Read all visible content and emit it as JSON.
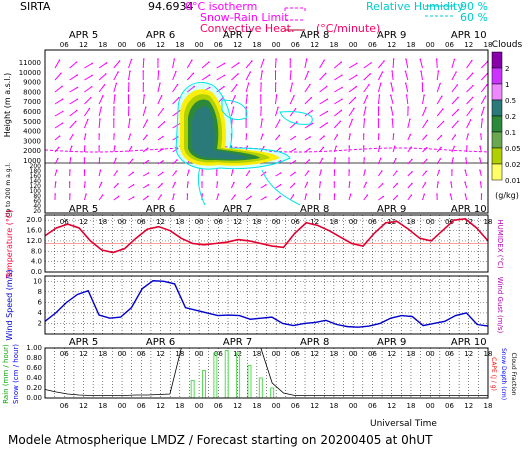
{
  "header": {
    "station": "SIRTA",
    "coords": "94.6934",
    "isotherm_label": "0°C isotherm",
    "snow_rain_label": "Snow-Rain Limit",
    "conv_heat_label": "Convective Heat.",
    "unit_label": "(°C/minute)",
    "rh_label": "Relative Humidity",
    "rh_90": "90 %",
    "rh_60": "60 %"
  },
  "footer": {
    "title": "Modele Atmospherique LMDZ / Forecast starting on 20200405 at 0hUT",
    "universal_time": "Universal Time"
  },
  "colors": {
    "magenta": "#ff00ff",
    "cyan": "#00e5e5",
    "red_line": "#e00030",
    "blue_line": "#0000cc",
    "green_bars": "#55dd55"
  },
  "chart_data": [
    {
      "type": "heatmap",
      "name": "Clouds",
      "ylabel": "Height (m a.s.l.)",
      "ylabel_low": "Up to 200 m a.g.l.",
      "yticks_upper": [
        "11000",
        "10000",
        "9000",
        "8000",
        "7000",
        "6000",
        "5000",
        "4000",
        "3000",
        "2000",
        "1000"
      ],
      "yticks_lower": [
        "200",
        "180",
        "160",
        "140",
        "120",
        "100",
        "80",
        "60",
        "40",
        "20"
      ],
      "day_labels": [
        "APR 5",
        "APR 6",
        "APR 7",
        "APR 8",
        "APR 9",
        "APR 10"
      ],
      "hour_ticks": [
        "06",
        "12",
        "18",
        "00",
        "06",
        "12",
        "18",
        "00",
        "06",
        "12",
        "18",
        "00",
        "06",
        "12",
        "18",
        "00",
        "06",
        "12",
        "18",
        "00",
        "06",
        "12",
        "18"
      ],
      "colorbar_title": "Clouds",
      "colorbar_ticks": [
        "2",
        "1",
        "0.5",
        "0.2",
        "0.1",
        "0.05",
        "0.02",
        "0.01"
      ],
      "colorbar_unit": "(g/kg)"
    },
    {
      "type": "line",
      "name": "Temperature",
      "ylabel": "Temperature (°C)",
      "ylabel_right": "HUMIDEX (°C)",
      "yticks": [
        "20.0",
        "16.0",
        "12.0",
        "8.0",
        "4.0",
        "0.0"
      ],
      "ylim": [
        0,
        22
      ],
      "series": [
        {
          "values": [
            14,
            17,
            18.5,
            17,
            12,
            8.5,
            7.5,
            9,
            13,
            16.5,
            17.5,
            16,
            13,
            11,
            10.5,
            11,
            11.5,
            12.5,
            12,
            11,
            10,
            9.5,
            15,
            19,
            18,
            16,
            13.5,
            11,
            10,
            15,
            19,
            19.5,
            16.5,
            13,
            12,
            16,
            20,
            20.5,
            17,
            12
          ]
        },
        {
          "values": [
            11,
            11,
            11,
            11,
            11,
            11,
            11,
            11,
            11,
            11,
            11,
            11,
            11,
            11,
            11,
            11,
            11,
            11,
            11,
            11,
            11,
            11,
            11,
            11,
            11,
            11,
            11,
            11,
            11,
            11,
            11,
            11,
            11,
            11,
            11,
            11,
            11,
            11,
            11,
            11
          ]
        }
      ]
    },
    {
      "type": "line",
      "name": "Wind Speed",
      "ylabel": "Wind Speed (m/s)",
      "ylabel_right": "Wind Gust (m/s)",
      "yticks": [
        "10",
        "8",
        "6",
        "4",
        "2"
      ],
      "ylim": [
        0,
        11
      ],
      "series": [
        {
          "values": [
            2.4,
            4,
            6,
            7.5,
            8.2,
            3.6,
            3,
            3.2,
            5,
            8.6,
            10.1,
            10,
            9.5,
            5,
            4.5,
            4,
            3.5,
            3.6,
            3.5,
            2.8,
            3,
            3.2,
            2,
            1.6,
            2,
            2.2,
            2.6,
            1.8,
            1.4,
            1.3,
            1.5,
            2,
            3,
            3.5,
            3.3,
            1.6,
            2,
            2.4,
            3.5,
            4,
            1.8,
            1.5
          ]
        }
      ]
    },
    {
      "type": "bar",
      "name": "Precipitation",
      "ylabel": "Rain (mm / hour)",
      "ylabel_2": "Snow (cm / hour)",
      "ylabel_right": "CAPE (J / g)",
      "ylabel_right_2": "Snow Depth (cm)",
      "ylabel_right_3": "Cloud Fraction",
      "yticks": [
        "1.00",
        "0.80",
        "0.60",
        "0.40",
        "0.20",
        "0.00"
      ],
      "ylim": [
        0,
        1
      ],
      "cloud_fraction": [
        0.17,
        0.12,
        0.08,
        0.06,
        0.05,
        0.05,
        0.05,
        0.05,
        0.06,
        0.06,
        0.07,
        0.08,
        1,
        1,
        1,
        1,
        1,
        1,
        1,
        1,
        0.3,
        0.1,
        0.05,
        0.05,
        0.05,
        0.05,
        0.05,
        0.05,
        0.05,
        0.05,
        0.05,
        0.05,
        0.05,
        0.05,
        0.05,
        0.05,
        0.05,
        0.05,
        0.05,
        0.05
      ],
      "rain": [
        0,
        0,
        0,
        0,
        0,
        0,
        0,
        0,
        0,
        0,
        0,
        0,
        0,
        0.35,
        0.55,
        0.9,
        0.95,
        0.9,
        0.65,
        0.4,
        0.2,
        0,
        0,
        0,
        0,
        0,
        0,
        0,
        0,
        0,
        0,
        0,
        0,
        0,
        0,
        0,
        0,
        0,
        0,
        0
      ]
    }
  ]
}
